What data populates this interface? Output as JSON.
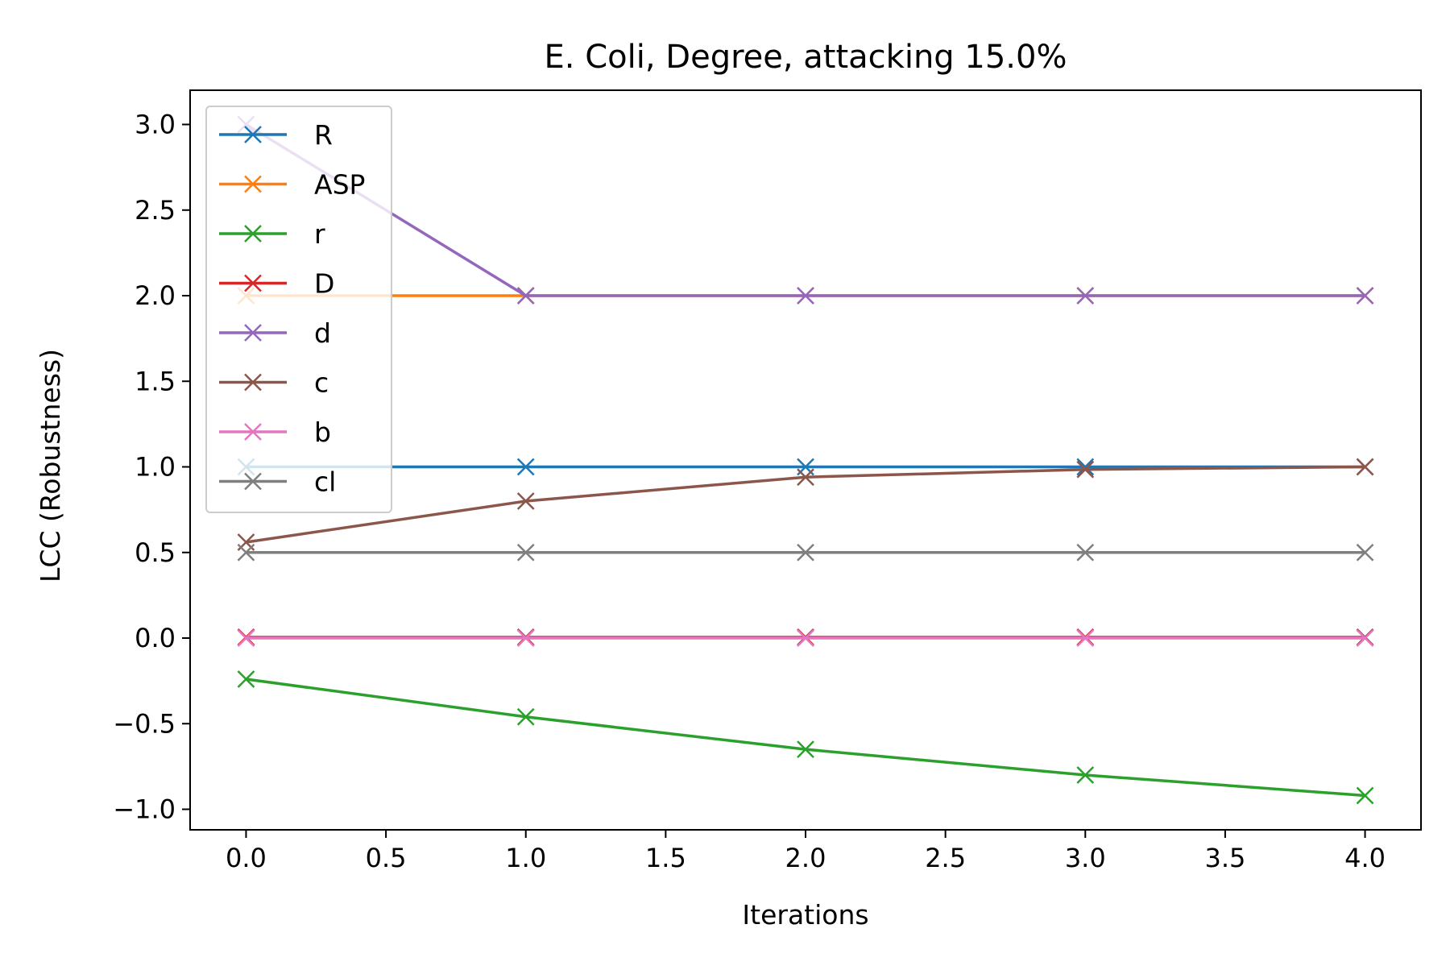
{
  "chart_data": {
    "type": "line",
    "title": "E. Coli, Degree, attacking 15.0%",
    "xlabel": "Iterations",
    "ylabel": "LCC (Robustness)",
    "x": [
      0,
      1,
      2,
      3,
      4
    ],
    "xlim": [
      -0.2,
      4.2
    ],
    "ylim": [
      -1.12,
      3.2
    ],
    "xticks": [
      0.0,
      0.5,
      1.0,
      1.5,
      2.0,
      2.5,
      3.0,
      3.5,
      4.0
    ],
    "xtick_labels": [
      "0.0",
      "0.5",
      "1.0",
      "1.5",
      "2.0",
      "2.5",
      "3.0",
      "3.5",
      "4.0"
    ],
    "yticks": [
      -1.0,
      -0.5,
      0.0,
      0.5,
      1.0,
      1.5,
      2.0,
      2.5,
      3.0
    ],
    "ytick_labels": [
      "−1.0",
      "−0.5",
      "0.0",
      "0.5",
      "1.0",
      "1.5",
      "2.0",
      "2.5",
      "3.0"
    ],
    "grid": false,
    "legend_position": "top-left",
    "marker": "x",
    "series": [
      {
        "name": "R",
        "color": "#1f77b4",
        "values": [
          1.0,
          1.0,
          1.0,
          1.0,
          1.0
        ]
      },
      {
        "name": "ASP",
        "color": "#ff7f0e",
        "values": [
          2.0,
          2.0,
          2.0,
          2.0,
          2.0
        ]
      },
      {
        "name": "r",
        "color": "#2ca02c",
        "values": [
          -0.24,
          -0.46,
          -0.65,
          -0.8,
          -0.92
        ]
      },
      {
        "name": "D",
        "color": "#d62728",
        "values": [
          0.005,
          0.005,
          0.005,
          0.005,
          0.005
        ]
      },
      {
        "name": "d",
        "color": "#9467bd",
        "values": [
          3.0,
          2.0,
          2.0,
          2.0,
          2.0
        ]
      },
      {
        "name": "c",
        "color": "#8c564b",
        "values": [
          0.56,
          0.8,
          0.94,
          0.985,
          1.0
        ]
      },
      {
        "name": "b",
        "color": "#e377c2",
        "values": [
          0.0,
          0.0,
          0.0,
          0.0,
          0.0
        ]
      },
      {
        "name": "cl",
        "color": "#7f7f7f",
        "values": [
          0.5,
          0.5,
          0.5,
          0.5,
          0.5
        ]
      }
    ]
  }
}
